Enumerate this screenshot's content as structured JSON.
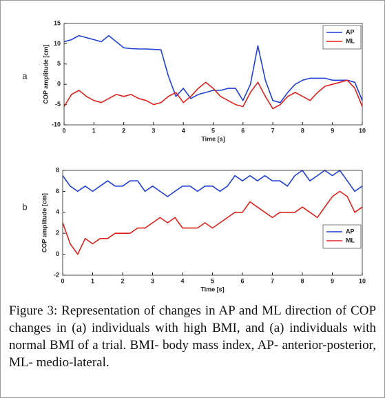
{
  "chart_data": [
    {
      "type": "line",
      "panel": "a",
      "xlabel": "Time [s]",
      "ylabel": "COP amplitude [cm]",
      "x": [
        0,
        0.25,
        0.5,
        0.75,
        1,
        1.25,
        1.5,
        1.75,
        2,
        2.25,
        2.5,
        2.75,
        3,
        3.25,
        3.5,
        3.75,
        4,
        4.25,
        4.5,
        4.75,
        5,
        5.25,
        5.5,
        5.75,
        6,
        6.25,
        6.5,
        6.75,
        7,
        7.25,
        7.5,
        7.75,
        8,
        8.25,
        8.5,
        8.75,
        9,
        9.25,
        9.5,
        9.75,
        10
      ],
      "series": [
        {
          "name": "AP",
          "color": "#1f3fd6",
          "values": [
            10.5,
            11,
            12,
            11.5,
            11,
            10.5,
            12,
            10.5,
            9,
            8.8,
            8.7,
            8.7,
            8.6,
            8.5,
            2,
            -3,
            -1,
            -3.5,
            -2.5,
            -2,
            -1.5,
            -1.5,
            -1,
            -1,
            -4,
            0,
            9.5,
            1,
            -4,
            -4.5,
            -2,
            0,
            1,
            1.5,
            1.5,
            1.5,
            1,
            1,
            1,
            0.5,
            -4
          ]
        },
        {
          "name": "ML",
          "color": "#e0201b",
          "values": [
            -5.5,
            -2.5,
            -1.5,
            -3,
            -4,
            -4.5,
            -3.5,
            -2.5,
            -3,
            -2.5,
            -3.5,
            -4,
            -5,
            -4.5,
            -3,
            -2,
            -4.5,
            -3,
            -1,
            0.5,
            -1,
            -3,
            -4,
            -5,
            -5.5,
            -2,
            0.5,
            -3,
            -6,
            -5,
            -3,
            -2,
            -3,
            -4,
            -2,
            -0.5,
            0,
            0.5,
            1,
            -1,
            -5.5
          ]
        }
      ],
      "xlim": [
        0,
        10
      ],
      "xticks": [
        0,
        1,
        2,
        3,
        4,
        5,
        6,
        7,
        8,
        9,
        10
      ],
      "ylim": [
        -10,
        15
      ],
      "yticks": [
        -10,
        -5,
        0,
        5,
        10,
        15
      ],
      "legend": "upper right"
    },
    {
      "type": "line",
      "panel": "b",
      "xlabel": "Time [s]",
      "ylabel": "COP amplitude [cm]",
      "x": [
        0,
        0.25,
        0.5,
        0.75,
        1,
        1.25,
        1.5,
        1.75,
        2,
        2.25,
        2.5,
        2.75,
        3,
        3.25,
        3.5,
        3.75,
        4,
        4.25,
        4.5,
        4.75,
        5,
        5.25,
        5.5,
        5.75,
        6,
        6.25,
        6.5,
        6.75,
        7,
        7.25,
        7.5,
        7.75,
        8,
        8.25,
        8.5,
        8.75,
        9,
        9.25,
        9.5,
        9.75,
        10
      ],
      "series": [
        {
          "name": "AP",
          "color": "#1f3fd6",
          "values": [
            7.5,
            6.5,
            6,
            6.5,
            6,
            6.5,
            7,
            6.5,
            6.5,
            7,
            7,
            6,
            6.5,
            6,
            5.5,
            6,
            6.5,
            6.5,
            6,
            6.5,
            6.5,
            6,
            6.5,
            7.5,
            7,
            7.5,
            7,
            7.5,
            7,
            7,
            6.5,
            7.5,
            8,
            7,
            7.5,
            8,
            7.5,
            8,
            7,
            6,
            6.5
          ]
        },
        {
          "name": "ML",
          "color": "#e0201b",
          "values": [
            3,
            1,
            0,
            1.5,
            1,
            1.5,
            1.5,
            2,
            2,
            2,
            2.5,
            2.5,
            3,
            3.5,
            3,
            3.5,
            2.5,
            2.5,
            2.5,
            3,
            2.5,
            3,
            3.5,
            4,
            4,
            5,
            4.5,
            4,
            3.5,
            4,
            4,
            4,
            4.5,
            4,
            3.5,
            4.5,
            5.5,
            6,
            5.5,
            4,
            4.5
          ]
        }
      ],
      "xlim": [
        0,
        10
      ],
      "xticks": [
        0,
        1,
        2,
        3,
        4,
        5,
        6,
        7,
        8,
        9,
        10
      ],
      "ylim": [
        -2,
        8
      ],
      "yticks": [
        -2,
        0,
        2,
        4,
        6,
        8
      ],
      "legend": "right"
    }
  ],
  "caption": {
    "label": "Figure 3:",
    "text": "Representation of changes in AP and ML direction of COP changes in (a) individuals with high BMI, and (a) individuals with normal BMI of a trial. BMI- body mass index, AP- anterior-posterior, ML- medio-lateral."
  }
}
